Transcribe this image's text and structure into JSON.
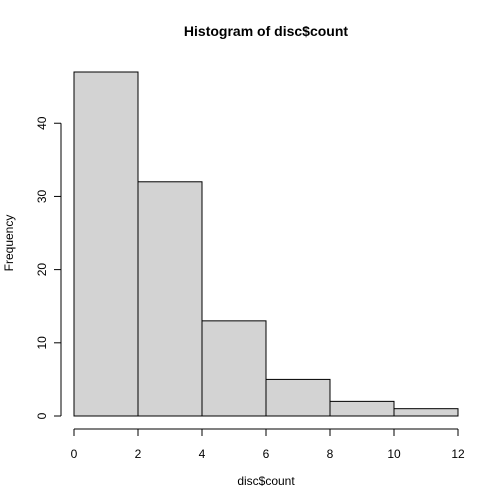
{
  "chart_data": {
    "type": "bar",
    "title": "Histogram of disc$count",
    "xlabel": "disc$count",
    "ylabel": "Frequency",
    "bins": [
      {
        "start": 0,
        "end": 2,
        "count": 47
      },
      {
        "start": 2,
        "end": 4,
        "count": 32
      },
      {
        "start": 4,
        "end": 6,
        "count": 13
      },
      {
        "start": 6,
        "end": 8,
        "count": 5
      },
      {
        "start": 8,
        "end": 10,
        "count": 2
      },
      {
        "start": 10,
        "end": 12,
        "count": 1
      }
    ],
    "xlim": [
      0,
      12
    ],
    "ylim": [
      0,
      47
    ],
    "x_ticks": [
      "0",
      "2",
      "4",
      "6",
      "8",
      "10",
      "12"
    ],
    "y_ticks": [
      "0",
      "10",
      "20",
      "30",
      "40"
    ],
    "grid": false,
    "legend": "none",
    "colors": {
      "bar_fill": "#d3d3d3",
      "bar_stroke": "#000000",
      "background": "#ffffff"
    }
  }
}
